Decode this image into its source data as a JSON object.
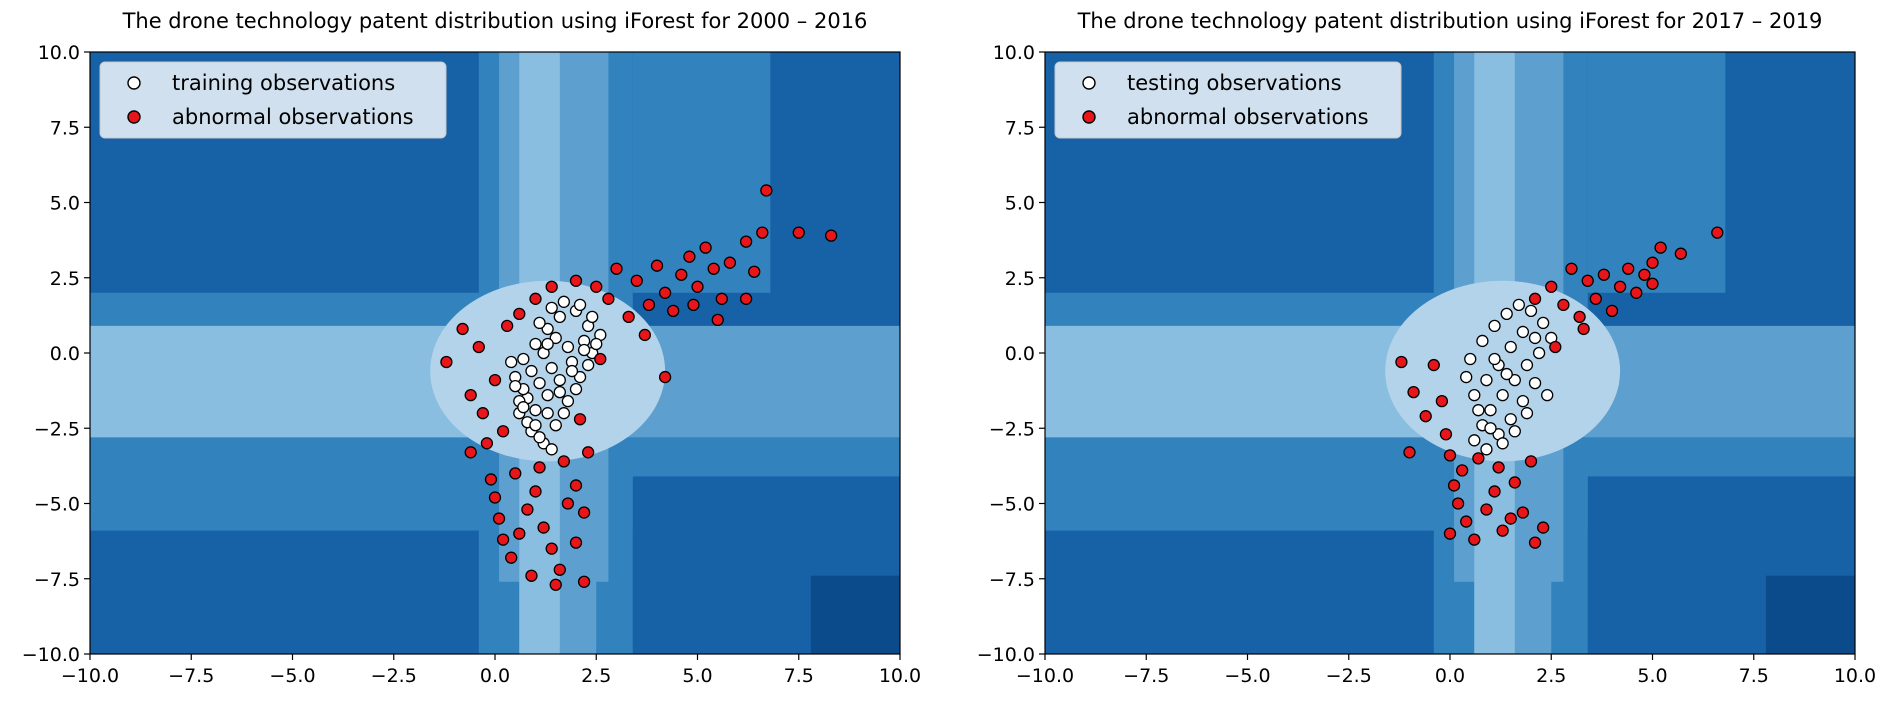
{
  "chart_data": [
    {
      "type": "scatter",
      "title": "The drone technology patent distribution using iForest for 2000 – 2016",
      "xlabel": "",
      "ylabel": "",
      "xlim": [
        -10,
        10
      ],
      "ylim": [
        -10,
        10
      ],
      "xticks": [
        "−10.0",
        "−7.5",
        "−5.0",
        "−2.5",
        "0.0",
        "2.5",
        "5.0",
        "7.5",
        "10.0"
      ],
      "yticks": [
        "10.0",
        "7.5",
        "5.0",
        "2.5",
        "0.0",
        "−2.5",
        "−5.0",
        "−7.5",
        "−10.0"
      ],
      "legend_position": "top-left",
      "background": "iForest anomaly-score contour (Blues)",
      "series": [
        {
          "name": "training observations",
          "color": "#ffffff",
          "edge_color": "#000000",
          "points": [
            [
              0.7,
              -0.2
            ],
            [
              1.0,
              0.3
            ],
            [
              1.3,
              0.8
            ],
            [
              1.6,
              1.2
            ],
            [
              2.0,
              1.4
            ],
            [
              2.3,
              0.9
            ],
            [
              1.8,
              0.2
            ],
            [
              1.4,
              -0.5
            ],
            [
              1.1,
              -1.0
            ],
            [
              0.8,
              -1.5
            ],
            [
              0.6,
              -2.0
            ],
            [
              0.9,
              -2.6
            ],
            [
              1.2,
              -3.0
            ],
            [
              1.5,
              -2.4
            ],
            [
              1.8,
              -1.6
            ],
            [
              2.1,
              -0.8
            ],
            [
              2.4,
              0.0
            ],
            [
              2.6,
              0.6
            ],
            [
              0.5,
              -0.8
            ],
            [
              0.7,
              -1.2
            ],
            [
              1.0,
              -1.9
            ],
            [
              1.3,
              -1.4
            ],
            [
              1.6,
              -0.9
            ],
            [
              1.9,
              -0.3
            ],
            [
              2.2,
              0.4
            ],
            [
              1.5,
              0.5
            ],
            [
              1.2,
              0.0
            ],
            [
              0.9,
              -0.6
            ],
            [
              0.6,
              -1.6
            ],
            [
              0.8,
              -2.3
            ],
            [
              1.1,
              -2.8
            ],
            [
              1.4,
              -3.2
            ],
            [
              1.7,
              -2.0
            ],
            [
              2.0,
              -1.2
            ],
            [
              2.3,
              -0.4
            ],
            [
              2.5,
              0.3
            ],
            [
              1.1,
              1.0
            ],
            [
              1.4,
              1.5
            ],
            [
              1.7,
              1.7
            ],
            [
              2.1,
              1.6
            ],
            [
              2.4,
              1.2
            ],
            [
              0.4,
              -0.3
            ],
            [
              0.5,
              -1.1
            ],
            [
              0.7,
              -1.8
            ],
            [
              1.0,
              -2.4
            ],
            [
              1.3,
              -2.0
            ],
            [
              1.6,
              -1.3
            ],
            [
              1.9,
              -0.6
            ],
            [
              2.2,
              0.1
            ],
            [
              1.3,
              0.3
            ]
          ]
        },
        {
          "name": "abnormal observations",
          "color": "#e8161a",
          "edge_color": "#000000",
          "points": [
            [
              -1.2,
              -0.3
            ],
            [
              -0.8,
              0.8
            ],
            [
              -0.6,
              -1.4
            ],
            [
              -0.4,
              0.2
            ],
            [
              -0.3,
              -2.0
            ],
            [
              -0.2,
              -3.0
            ],
            [
              -0.1,
              -4.2
            ],
            [
              0.0,
              -4.8
            ],
            [
              0.1,
              -5.5
            ],
            [
              0.2,
              -6.2
            ],
            [
              0.4,
              -6.8
            ],
            [
              0.6,
              -6.0
            ],
            [
              0.8,
              -5.2
            ],
            [
              1.0,
              -4.6
            ],
            [
              1.2,
              -5.8
            ],
            [
              1.4,
              -6.5
            ],
            [
              1.6,
              -7.2
            ],
            [
              1.8,
              -5.0
            ],
            [
              2.0,
              -4.4
            ],
            [
              2.2,
              -5.3
            ],
            [
              2.0,
              -6.3
            ],
            [
              2.2,
              -7.6
            ],
            [
              1.5,
              -7.7
            ],
            [
              0.9,
              -7.4
            ],
            [
              0.5,
              -4.0
            ],
            [
              1.1,
              -3.8
            ],
            [
              1.7,
              -3.6
            ],
            [
              2.3,
              -3.3
            ],
            [
              0.2,
              -2.6
            ],
            [
              -0.6,
              -3.3
            ],
            [
              0.0,
              -0.9
            ],
            [
              0.3,
              0.9
            ],
            [
              0.6,
              1.3
            ],
            [
              1.0,
              1.8
            ],
            [
              1.4,
              2.2
            ],
            [
              2.0,
              2.4
            ],
            [
              2.5,
              2.2
            ],
            [
              2.8,
              1.8
            ],
            [
              3.0,
              2.8
            ],
            [
              3.3,
              1.2
            ],
            [
              3.5,
              2.4
            ],
            [
              3.8,
              1.6
            ],
            [
              4.0,
              2.9
            ],
            [
              4.2,
              2.0
            ],
            [
              4.4,
              1.4
            ],
            [
              4.6,
              2.6
            ],
            [
              4.8,
              3.2
            ],
            [
              5.0,
              2.2
            ],
            [
              5.2,
              3.5
            ],
            [
              5.4,
              2.8
            ],
            [
              5.6,
              1.8
            ],
            [
              5.8,
              3.0
            ],
            [
              5.5,
              1.1
            ],
            [
              4.9,
              1.6
            ],
            [
              3.7,
              0.6
            ],
            [
              4.2,
              -0.8
            ],
            [
              6.2,
              3.7
            ],
            [
              6.4,
              2.7
            ],
            [
              6.2,
              1.8
            ],
            [
              6.6,
              4.0
            ],
            [
              6.7,
              5.4
            ],
            [
              7.5,
              4.0
            ],
            [
              8.3,
              3.9
            ],
            [
              2.6,
              -0.2
            ],
            [
              2.1,
              -2.2
            ]
          ]
        }
      ]
    },
    {
      "type": "scatter",
      "title": "The drone technology patent distribution using iForest for 2017 – 2019",
      "xlabel": "",
      "ylabel": "",
      "xlim": [
        -10,
        10
      ],
      "ylim": [
        -10,
        10
      ],
      "xticks": [
        "−10.0",
        "−7.5",
        "−5.0",
        "−2.5",
        "0.0",
        "2.5",
        "5.0",
        "7.5",
        "10.0"
      ],
      "yticks": [
        "10.0",
        "7.5",
        "5.0",
        "2.5",
        "0.0",
        "−2.5",
        "−5.0",
        "−7.5",
        "−10.0"
      ],
      "legend_position": "top-left",
      "background": "iForest anomaly-score contour (Blues)",
      "series": [
        {
          "name": "testing observations",
          "color": "#ffffff",
          "edge_color": "#000000",
          "points": [
            [
              0.5,
              -0.2
            ],
            [
              0.8,
              0.4
            ],
            [
              1.1,
              0.9
            ],
            [
              1.4,
              1.3
            ],
            [
              1.7,
              1.6
            ],
            [
              2.0,
              1.4
            ],
            [
              2.3,
              1.0
            ],
            [
              2.5,
              0.5
            ],
            [
              2.2,
              0.0
            ],
            [
              1.9,
              -0.4
            ],
            [
              1.6,
              -0.9
            ],
            [
              1.3,
              -1.4
            ],
            [
              1.0,
              -1.9
            ],
            [
              0.8,
              -2.4
            ],
            [
              0.6,
              -2.9
            ],
            [
              0.9,
              -3.2
            ],
            [
              1.2,
              -2.7
            ],
            [
              1.5,
              -2.2
            ],
            [
              1.8,
              -1.6
            ],
            [
              2.1,
              -1.0
            ],
            [
              0.4,
              -0.8
            ],
            [
              0.6,
              -1.4
            ],
            [
              0.9,
              -0.9
            ],
            [
              1.2,
              -0.4
            ],
            [
              1.5,
              0.2
            ],
            [
              1.8,
              0.7
            ],
            [
              2.1,
              0.5
            ],
            [
              0.7,
              -1.9
            ],
            [
              1.0,
              -2.5
            ],
            [
              1.3,
              -3.0
            ],
            [
              1.6,
              -2.6
            ],
            [
              1.9,
              -2.0
            ],
            [
              1.1,
              -0.2
            ],
            [
              1.4,
              -0.7
            ],
            [
              2.4,
              -1.4
            ]
          ]
        },
        {
          "name": "abnormal observations",
          "color": "#e8161a",
          "edge_color": "#000000",
          "points": [
            [
              -1.2,
              -0.3
            ],
            [
              -0.9,
              -1.3
            ],
            [
              -0.6,
              -2.1
            ],
            [
              -0.4,
              -0.4
            ],
            [
              -0.2,
              -1.6
            ],
            [
              -0.1,
              -2.7
            ],
            [
              0.0,
              -3.4
            ],
            [
              -1.0,
              -3.3
            ],
            [
              0.1,
              -4.4
            ],
            [
              0.2,
              -5.0
            ],
            [
              0.4,
              -5.6
            ],
            [
              0.0,
              -6.0
            ],
            [
              0.6,
              -6.2
            ],
            [
              0.9,
              -5.2
            ],
            [
              1.1,
              -4.6
            ],
            [
              1.3,
              -5.9
            ],
            [
              1.5,
              -5.5
            ],
            [
              1.8,
              -5.3
            ],
            [
              2.1,
              -6.3
            ],
            [
              2.3,
              -5.8
            ],
            [
              1.6,
              -4.3
            ],
            [
              2.0,
              -3.6
            ],
            [
              0.3,
              -3.9
            ],
            [
              0.7,
              -3.5
            ],
            [
              1.2,
              -3.8
            ],
            [
              2.1,
              1.8
            ],
            [
              2.5,
              2.2
            ],
            [
              2.8,
              1.6
            ],
            [
              3.0,
              2.8
            ],
            [
              3.2,
              1.2
            ],
            [
              3.4,
              2.4
            ],
            [
              3.6,
              1.8
            ],
            [
              3.8,
              2.6
            ],
            [
              4.0,
              1.4
            ],
            [
              4.2,
              2.2
            ],
            [
              4.4,
              2.8
            ],
            [
              4.6,
              2.0
            ],
            [
              4.8,
              2.6
            ],
            [
              5.0,
              2.3
            ],
            [
              5.2,
              3.5
            ],
            [
              5.0,
              3.0
            ],
            [
              5.7,
              3.3
            ],
            [
              6.6,
              4.0
            ],
            [
              3.3,
              0.8
            ],
            [
              2.6,
              0.2
            ]
          ]
        }
      ]
    }
  ]
}
